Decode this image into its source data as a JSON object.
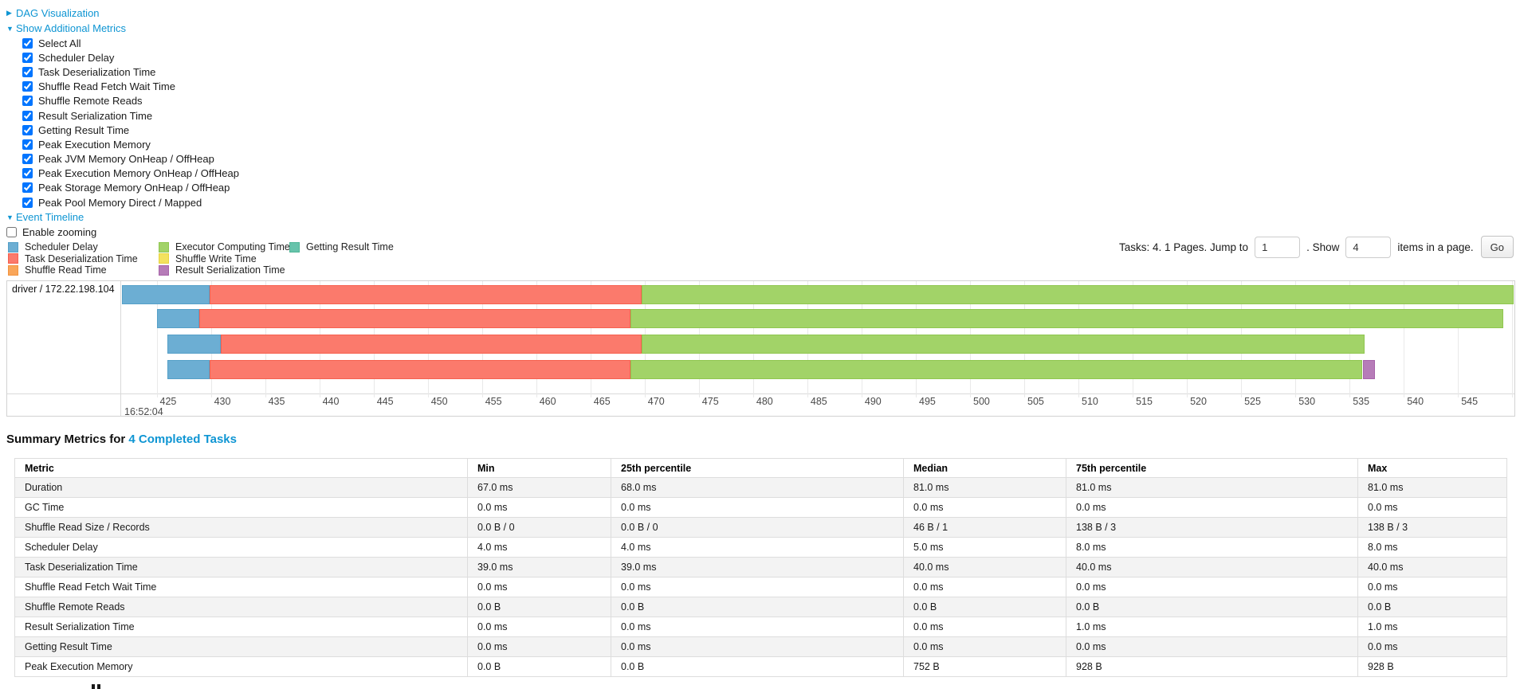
{
  "theme": {
    "link_color": "#0e95d3",
    "grid_color": "#e9e9e9",
    "table_stripe": "#f3f3f3"
  },
  "controls": {
    "dag": {
      "arrow": "▶",
      "label": "DAG Visualization"
    },
    "metrics": {
      "arrow": "▼",
      "label": "Show Additional Metrics"
    },
    "checkboxes": [
      "Select All",
      "Scheduler Delay",
      "Task Deserialization Time",
      "Shuffle Read Fetch Wait Time",
      "Shuffle Remote Reads",
      "Result Serialization Time",
      "Getting Result Time",
      "Peak Execution Memory",
      "Peak JVM Memory OnHeap / OffHeap",
      "Peak Execution Memory OnHeap / OffHeap",
      "Peak Storage Memory OnHeap / OffHeap",
      "Peak Pool Memory Direct / Mapped"
    ],
    "event_timeline": {
      "arrow": "▼",
      "label": "Event Timeline"
    },
    "enable_zooming": "Enable zooming"
  },
  "pagination": {
    "prefix": "Tasks: 4. 1 Pages. Jump to",
    "jump_value": "1",
    "mid": ". Show",
    "show_value": "4",
    "suffix": "items in a page.",
    "go_label": "Go"
  },
  "chart_data": {
    "type": "timeline",
    "row_label": "driver / 172.22.198.104",
    "axis": {
      "min": 421.8,
      "max": 550.2,
      "tick_start": 425,
      "tick_step": 5,
      "tick_end": 550,
      "time_label": "16:52:04"
    },
    "colors": {
      "scheduler_delay": {
        "fill": "#6CAED3",
        "border": "#55A0C8"
      },
      "task_deserialization": {
        "fill": "#FB7A6C",
        "border": "#F6604E"
      },
      "shuffle_read": {
        "fill": "#F9A65A",
        "border": "#F29440"
      },
      "executor_computing": {
        "fill": "#A2D368",
        "border": "#8FC64F"
      },
      "shuffle_write": {
        "fill": "#F3E25F",
        "border": "#E8D43F"
      },
      "result_serialization": {
        "fill": "#B67CB8",
        "border": "#A763A9"
      },
      "getting_result": {
        "fill": "#67C3AB",
        "border": "#4FB596"
      }
    },
    "legend_columns": [
      [
        {
          "label": "Scheduler Delay",
          "type": "scheduler_delay"
        },
        {
          "label": "Task Deserialization Time",
          "type": "task_deserialization"
        },
        {
          "label": "Shuffle Read Time",
          "type": "shuffle_read"
        }
      ],
      [
        {
          "label": "Executor Computing Time",
          "type": "executor_computing"
        },
        {
          "label": "Shuffle Write Time",
          "type": "shuffle_write"
        },
        {
          "label": "Result Serialization Time",
          "type": "result_serialization"
        }
      ],
      [
        {
          "label": "Getting Result Time",
          "type": "getting_result"
        }
      ]
    ],
    "tasks": [
      {
        "segments": [
          {
            "type": "scheduler_delay",
            "start": 421.8,
            "end": 429.9
          },
          {
            "type": "task_deserialization",
            "start": 429.9,
            "end": 469.7
          },
          {
            "type": "executor_computing",
            "start": 469.7,
            "end": 550.1
          }
        ]
      },
      {
        "segments": [
          {
            "type": "scheduler_delay",
            "start": 425.0,
            "end": 428.9
          },
          {
            "type": "task_deserialization",
            "start": 428.9,
            "end": 468.7
          },
          {
            "type": "executor_computing",
            "start": 468.7,
            "end": 549.2
          }
        ]
      },
      {
        "segments": [
          {
            "type": "scheduler_delay",
            "start": 426.0,
            "end": 430.9
          },
          {
            "type": "task_deserialization",
            "start": 430.9,
            "end": 469.7
          },
          {
            "type": "executor_computing",
            "start": 469.7,
            "end": 536.4
          }
        ]
      },
      {
        "segments": [
          {
            "type": "scheduler_delay",
            "start": 426.0,
            "end": 429.9
          },
          {
            "type": "task_deserialization",
            "start": 429.9,
            "end": 468.7
          },
          {
            "type": "executor_computing",
            "start": 468.7,
            "end": 536.2
          },
          {
            "type": "result_serialization",
            "start": 536.2,
            "end": 537.3
          }
        ]
      }
    ]
  },
  "summary": {
    "title_prefix": "Summary Metrics for",
    "title_link": "4 Completed Tasks",
    "columns": [
      "Metric",
      "Min",
      "25th percentile",
      "Median",
      "75th percentile",
      "Max"
    ],
    "rows": [
      [
        "Duration",
        "67.0 ms",
        "68.0 ms",
        "81.0 ms",
        "81.0 ms",
        "81.0 ms"
      ],
      [
        "GC Time",
        "0.0 ms",
        "0.0 ms",
        "0.0 ms",
        "0.0 ms",
        "0.0 ms"
      ],
      [
        "Shuffle Read Size / Records",
        "0.0 B / 0",
        "0.0 B / 0",
        "46 B / 1",
        "138 B / 3",
        "138 B / 3"
      ],
      [
        "Scheduler Delay",
        "4.0 ms",
        "4.0 ms",
        "5.0 ms",
        "8.0 ms",
        "8.0 ms"
      ],
      [
        "Task Deserialization Time",
        "39.0 ms",
        "39.0 ms",
        "40.0 ms",
        "40.0 ms",
        "40.0 ms"
      ],
      [
        "Shuffle Read Fetch Wait Time",
        "0.0 ms",
        "0.0 ms",
        "0.0 ms",
        "0.0 ms",
        "0.0 ms"
      ],
      [
        "Shuffle Remote Reads",
        "0.0 B",
        "0.0 B",
        "0.0 B",
        "0.0 B",
        "0.0 B"
      ],
      [
        "Result Serialization Time",
        "0.0 ms",
        "0.0 ms",
        "0.0 ms",
        "1.0 ms",
        "1.0 ms"
      ],
      [
        "Getting Result Time",
        "0.0 ms",
        "0.0 ms",
        "0.0 ms",
        "0.0 ms",
        "0.0 ms"
      ],
      [
        "Peak Execution Memory",
        "0.0 B",
        "0.0 B",
        "752 B",
        "928 B",
        "928 B"
      ]
    ]
  }
}
